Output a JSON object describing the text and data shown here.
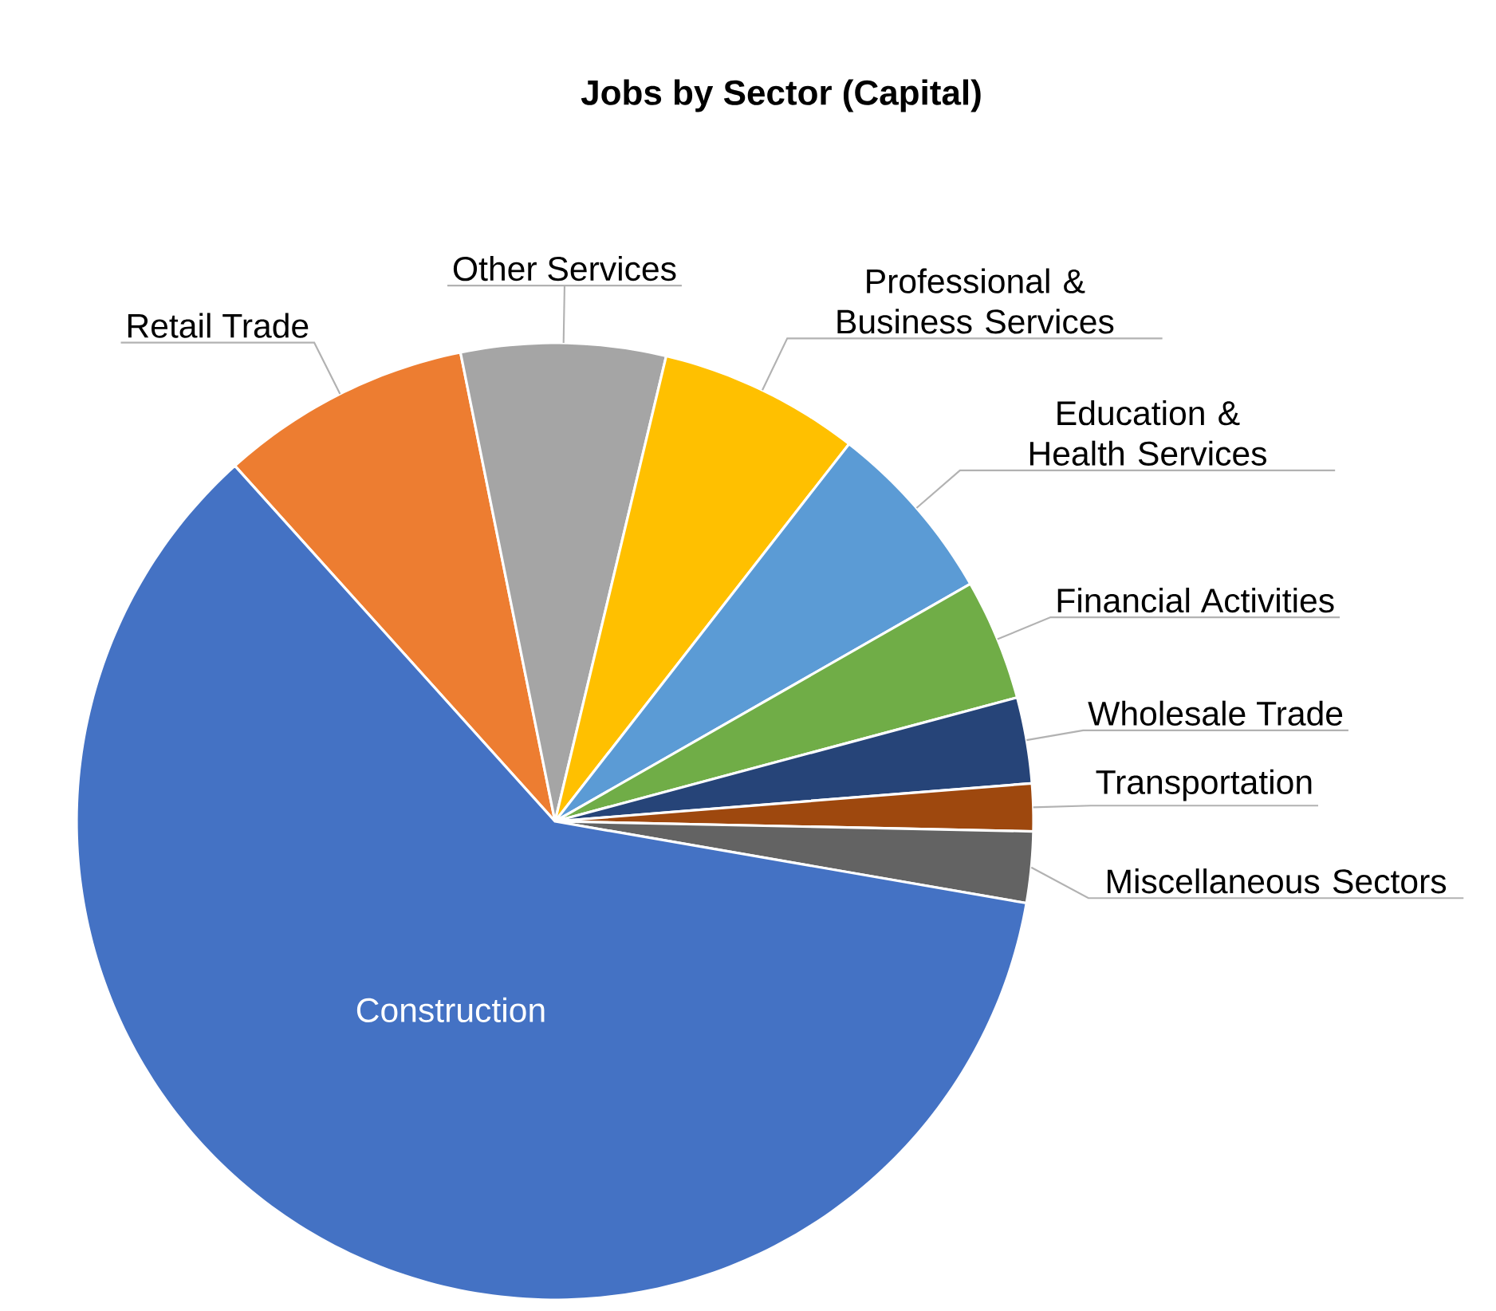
{
  "chart_data": {
    "type": "pie",
    "title": "Jobs by Sector (Capital)",
    "categories": [
      "Retail Trade",
      "Other Services",
      "Professional & Business Services",
      "Education & Health Services",
      "Financial Activities",
      "Wholesale Trade",
      "Transportation",
      "Miscellaneous Sectors",
      "Construction"
    ],
    "values": [
      8.5,
      6.9,
      6.8,
      6.2,
      4.1,
      2.9,
      1.6,
      2.4,
      60.6
    ],
    "colors": [
      "#ed7d31",
      "#a5a5a5",
      "#ffc000",
      "#5b9bd5",
      "#70ad47",
      "#264478",
      "#9e480e",
      "#636363",
      "#4472c4"
    ]
  }
}
